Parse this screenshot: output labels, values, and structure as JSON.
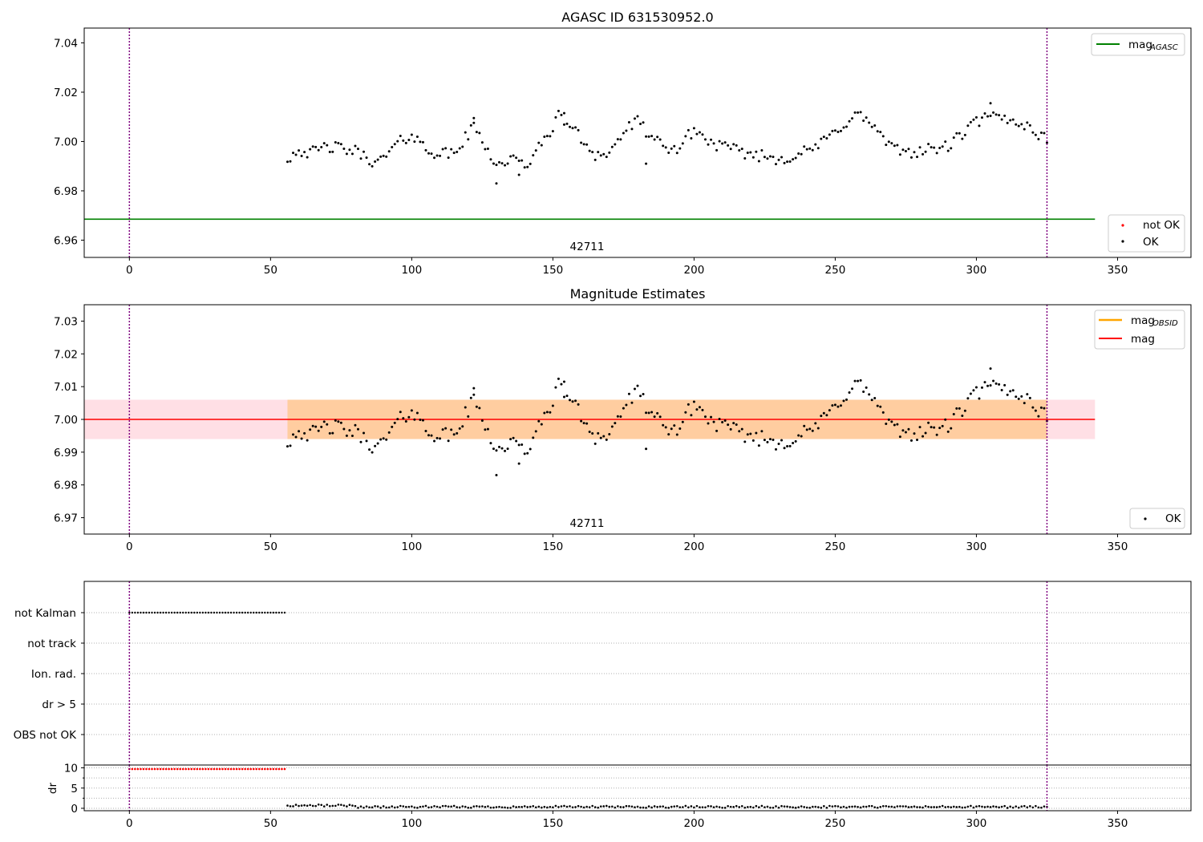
{
  "figure": {
    "panels": [
      {
        "title": "AGASC ID 631530952.0",
        "annotation": "42711",
        "legends": [
          {
            "entries": [
              {
                "label": "mag",
                "subscript": "AGASC",
                "color": "#008000",
                "kind": "line"
              }
            ]
          },
          {
            "entries": [
              {
                "label": "not OK",
                "color": "#ff0000",
                "kind": "dot"
              },
              {
                "label": "OK",
                "color": "#000000",
                "kind": "dot"
              }
            ]
          }
        ]
      },
      {
        "title": "Magnitude Estimates",
        "annotation": "42711",
        "legends": [
          {
            "entries": [
              {
                "label": "mag",
                "subscript": "OBSID",
                "color": "#ffa500",
                "kind": "line"
              },
              {
                "label": "mag",
                "color": "#ff0000",
                "kind": "line"
              }
            ]
          },
          {
            "entries": [
              {
                "label": "OK",
                "color": "#000000",
                "kind": "dot"
              }
            ]
          }
        ]
      },
      {
        "title": "",
        "flag_rows": [
          "not Kalman",
          "not track",
          "Ion. rad.",
          "dr > 5",
          "OBS not OK"
        ]
      },
      {
        "title": "",
        "ylabel": "dr"
      }
    ]
  },
  "chart_data": [
    {
      "type": "scatter",
      "title": "AGASC ID 631530952.0",
      "xlim": [
        -16,
        376
      ],
      "ylim": [
        6.953,
        7.046
      ],
      "xticks": [
        0,
        50,
        100,
        150,
        200,
        250,
        300,
        350
      ],
      "yticks": [
        6.96,
        6.98,
        7.0,
        7.02,
        7.04
      ],
      "vlines": {
        "x": [
          0,
          325
        ],
        "color": "#800080",
        "style": "dotted"
      },
      "hline": {
        "name": "mag_AGASC",
        "y": 6.9685,
        "x_range": [
          -16,
          342
        ],
        "color": "#008000"
      },
      "annotation": {
        "text": "42711",
        "x": 163,
        "y": 6.956
      },
      "series": [
        {
          "name": "OK",
          "color": "#000000",
          "x_range": [
            56,
            325
          ],
          "anchors_x": [
            56,
            60,
            64,
            70,
            75,
            80,
            85,
            88,
            95,
            100,
            105,
            110,
            115,
            122,
            127,
            130,
            135,
            140,
            145,
            152,
            156,
            160,
            165,
            170,
            175,
            180,
            185,
            190,
            195,
            200,
            205,
            210,
            215,
            220,
            225,
            230,
            235,
            240,
            245,
            250,
            255,
            258,
            262,
            265,
            270,
            275,
            280,
            285,
            290,
            295,
            300,
            305,
            310,
            315,
            320,
            325
          ],
          "anchors_y": [
            6.993,
            6.997,
            6.995,
            6.998,
            6.997,
            6.996,
            6.993,
            6.991,
            6.999,
            7.003,
            6.997,
            6.995,
            6.995,
            7.006,
            6.997,
            6.99,
            6.993,
            6.99,
            6.997,
            7.01,
            7.007,
            7.001,
            6.995,
            6.995,
            7.004,
            7.008,
            7.002,
            6.996,
            6.998,
            7.005,
            7.0,
            6.998,
            6.996,
            6.995,
            6.994,
            6.993,
            6.994,
            6.996,
            6.999,
            7.004,
            7.009,
            7.011,
            7.008,
            7.004,
            6.997,
            6.996,
            6.996,
            6.997,
            6.998,
            7.003,
            7.008,
            7.01,
            7.009,
            7.008,
            7.005,
            7.0
          ],
          "jitter": 0.0025,
          "extra_points": [
            [
              130,
              6.983
            ],
            [
              138,
              6.9865
            ],
            [
              154,
              7.0115
            ],
            [
              122,
              7.0095
            ],
            [
              305,
              7.0155
            ],
            [
              183,
              6.991
            ]
          ]
        },
        {
          "name": "not OK",
          "color": "#ff0000",
          "points": []
        }
      ]
    },
    {
      "type": "scatter",
      "title": "Magnitude Estimates",
      "xlim": [
        -16,
        376
      ],
      "ylim": [
        6.965,
        7.035
      ],
      "xticks": [
        0,
        50,
        100,
        150,
        200,
        250,
        300,
        350
      ],
      "yticks": [
        6.97,
        6.98,
        6.99,
        7.0,
        7.01,
        7.02,
        7.03
      ],
      "vlines": {
        "x": [
          0,
          325
        ],
        "color": "#800080",
        "style": "dotted"
      },
      "hline": {
        "name": "mag",
        "y": 7.0,
        "x_range": [
          -16,
          342
        ],
        "color": "#ff0000"
      },
      "bands": [
        {
          "name": "mag band",
          "y_range": [
            6.994,
            7.006
          ],
          "x_range": [
            -16,
            342
          ],
          "color": "#ffc0cb",
          "opacity": 0.5
        },
        {
          "name": "mag_OBSID band",
          "y_range": [
            6.994,
            7.006
          ],
          "x_range": [
            56,
            325
          ],
          "color": "#ffa500",
          "opacity": 0.3
        }
      ],
      "annotation": {
        "text": "42711",
        "x": 163,
        "y": 6.968
      },
      "series": [
        {
          "name": "OK",
          "color": "#000000",
          "same_points_as": "panel 1 OK"
        }
      ]
    },
    {
      "type": "scatter",
      "title": "",
      "xlim": [
        -16,
        376
      ],
      "categories": [
        "not Kalman",
        "not track",
        "Ion. rad.",
        "dr > 5",
        "OBS not OK"
      ],
      "vlines": {
        "x": [
          0,
          325
        ],
        "color": "#800080",
        "style": "dotted"
      },
      "series": [
        {
          "name": "not Kalman",
          "color": "#000000",
          "x_range": [
            0,
            55
          ],
          "step": 1,
          "category": "not Kalman"
        }
      ]
    },
    {
      "type": "scatter",
      "title": "",
      "xlabel": "",
      "ylabel": "dr",
      "xlim": [
        -16,
        376
      ],
      "ylim": [
        -0.6,
        10.7
      ],
      "xticks": [
        0,
        50,
        100,
        150,
        200,
        250,
        300,
        350
      ],
      "yticks": [
        0,
        5,
        10
      ],
      "minor_yticks": [
        2.5,
        7.5
      ],
      "vlines": {
        "x": [
          0,
          325
        ],
        "color": "#800080",
        "style": "dotted"
      },
      "series": [
        {
          "name": "dr (not OK)",
          "color": "#ff0000",
          "x_range": [
            0,
            55
          ],
          "step": 1,
          "y": 9.7
        },
        {
          "name": "dr",
          "color": "#000000",
          "x_range": [
            56,
            325
          ],
          "step": 1,
          "y_base": 0.35,
          "jitter": 0.25
        }
      ]
    }
  ]
}
